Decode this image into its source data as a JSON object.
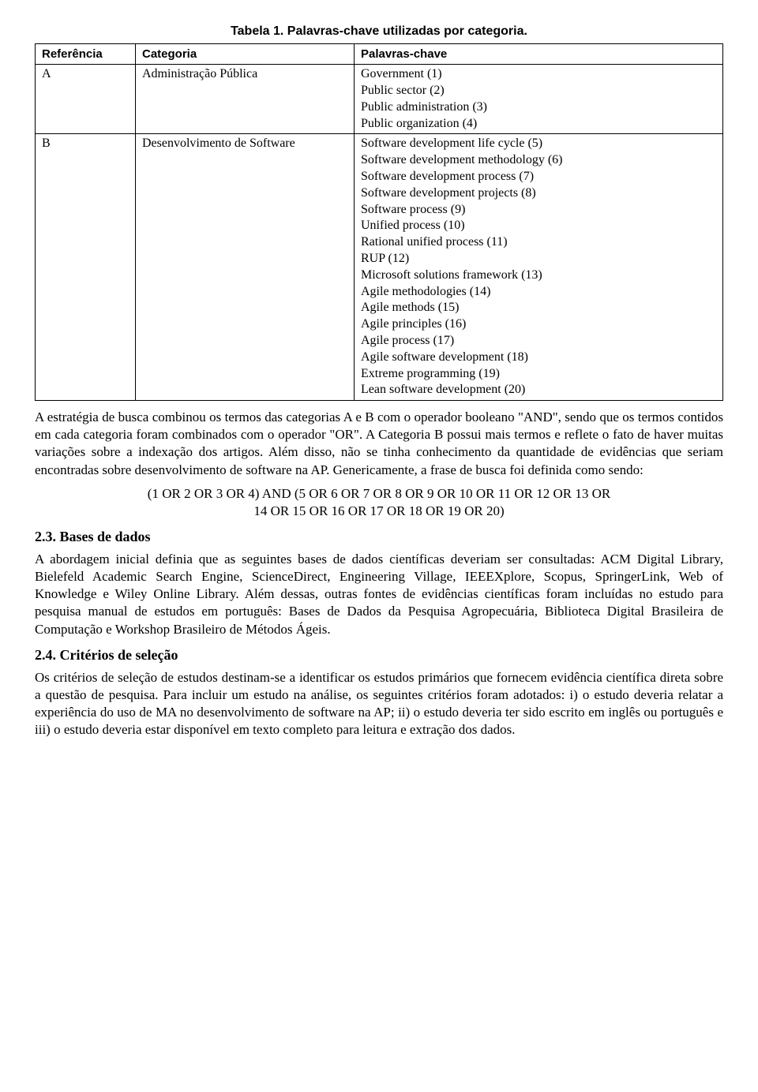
{
  "table": {
    "caption": "Tabela 1. Palavras-chave utilizadas por categoria.",
    "headers": {
      "ref": "Referência",
      "cat": "Categoria",
      "kw": "Palavras-chave"
    },
    "rows": [
      {
        "ref": "A",
        "cat": "Administração Pública",
        "keywords": [
          "Government (1)",
          "Public sector (2)",
          "Public administration (3)",
          "Public organization (4)"
        ]
      },
      {
        "ref": "B",
        "cat": "Desenvolvimento de Software",
        "keywords": [
          "Software development life cycle (5)",
          "Software development methodology (6)",
          "Software development process (7)",
          "Software development projects (8)",
          "Software process (9)",
          "Unified process (10)",
          "Rational unified process (11)",
          "RUP (12)",
          "Microsoft solutions framework (13)",
          "Agile methodologies (14)",
          "Agile methods (15)",
          "Agile principles (16)",
          "Agile process (17)",
          "Agile software development (18)",
          "Extreme programming (19)",
          "Lean software development (20)"
        ]
      }
    ]
  },
  "paragraphs": {
    "p1": "A estratégia de busca combinou os termos das categorias A e B com o operador booleano \"AND\", sendo que os termos contidos em cada categoria foram combinados com o operador \"OR\". A Categoria B possui mais termos e reflete o fato de haver muitas variações sobre a indexação dos artigos. Além disso, não se tinha conhecimento da quantidade de evidências que seriam encontradas sobre desenvolvimento de software na AP. Genericamente, a frase de busca foi definida como sendo:",
    "query_l1": "(1 OR 2 OR 3 OR 4) AND (5 OR 6 OR 7 OR 8 OR 9 OR 10 OR 11 OR 12 OR 13 OR",
    "query_l2": "14 OR 15 OR 16 OR 17 OR 18 OR 19 OR 20)",
    "h23": "2.3. Bases de dados",
    "p2": "A abordagem inicial definia que as seguintes bases de dados científicas deveriam ser consultadas: ACM Digital Library, Bielefeld Academic Search Engine, ScienceDirect, Engineering Village, IEEEXplore, Scopus, SpringerLink, Web of Knowledge e Wiley Online Library. Além dessas, outras fontes de evidências científicas foram incluídas no estudo para pesquisa manual de estudos em português: Bases de Dados da Pesquisa Agropecuária, Biblioteca Digital Brasileira de Computação e Workshop Brasileiro de Métodos Ágeis.",
    "h24": "2.4. Critérios de seleção",
    "p3": "Os critérios de seleção de estudos destinam-se a identificar os estudos primários que fornecem evidência científica direta sobre a questão de pesquisa. Para incluir um estudo na análise, os seguintes critérios foram adotados: i) o estudo deveria relatar a experiência do uso de MA no desenvolvimento de software na AP; ii) o estudo deveria ter sido escrito em inglês ou português e iii) o estudo deveria estar disponível em texto completo para leitura e extração dos dados."
  }
}
